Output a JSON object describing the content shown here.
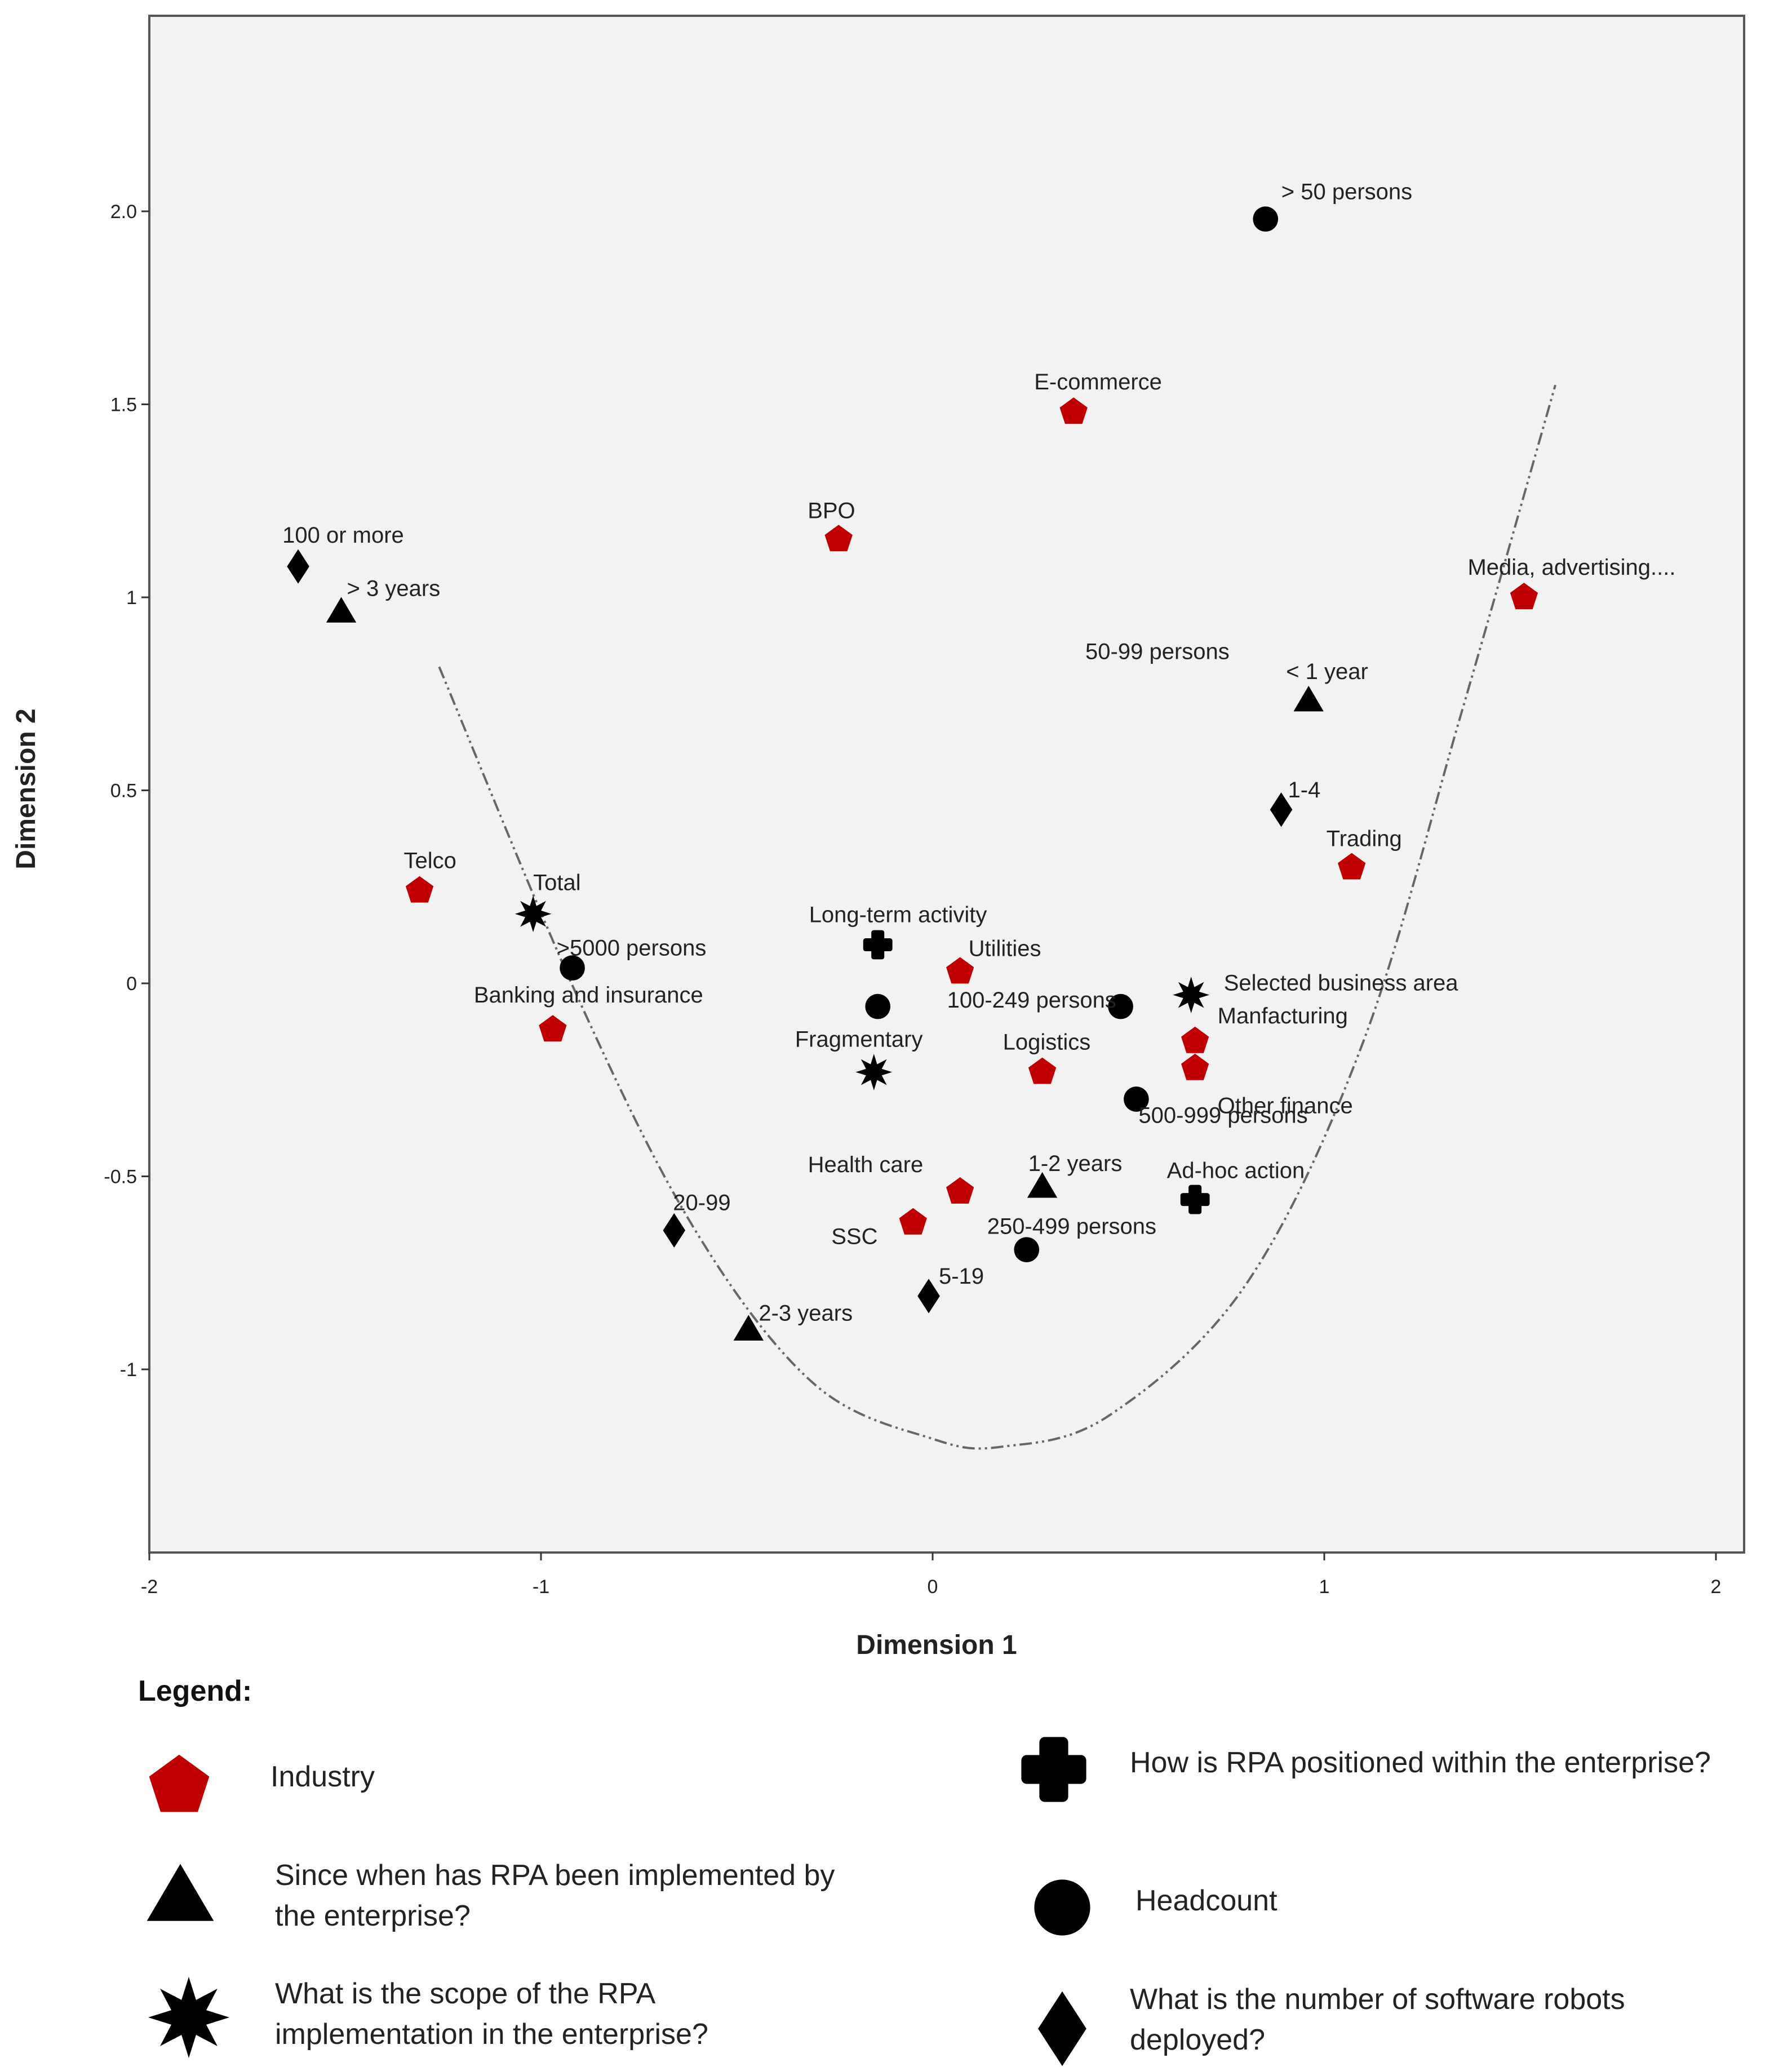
{
  "chart_data": {
    "type": "scatter",
    "title": "",
    "xlabel": "Dimension 1",
    "ylabel": "Dimension 2",
    "xlim": [
      -2,
      2
    ],
    "ylim": [
      -1.45,
      2.5
    ],
    "x_ticks": [
      -2,
      -1,
      0,
      1,
      2
    ],
    "x_tick_labels": [
      "-2",
      "-1",
      "0",
      "1",
      "2"
    ],
    "y_ticks": [
      -1,
      -0.5,
      0,
      0.5,
      1,
      1.5,
      2.0
    ],
    "y_tick_labels": [
      "-1",
      "-0.5",
      "0",
      "0.5",
      "1",
      "1.5",
      "2.0"
    ],
    "grid": false,
    "colors": {
      "industry": "#c00000",
      "other": "#000000",
      "background": "#f2f2f2"
    },
    "series": [
      {
        "name": "Industry",
        "marker": "pentagon",
        "color": "#c00000",
        "points": [
          {
            "x": 0.36,
            "y": 1.48,
            "label": "E-commerce"
          },
          {
            "x": -0.24,
            "y": 1.15,
            "label": "BPO"
          },
          {
            "x": 1.51,
            "y": 1.0,
            "label": "Media, advertising...."
          },
          {
            "x": 1.07,
            "y": 0.3,
            "label": "Trading"
          },
          {
            "x": -1.31,
            "y": 0.24,
            "label": "Telco"
          },
          {
            "x": 0.07,
            "y": 0.03,
            "label": "Utilities"
          },
          {
            "x": -0.97,
            "y": -0.12,
            "label": "Banking and insurance"
          },
          {
            "x": 0.67,
            "y": -0.15,
            "label": "Manfacturing"
          },
          {
            "x": 0.67,
            "y": -0.22,
            "label": "Other finance"
          },
          {
            "x": 0.28,
            "y": -0.23,
            "label": "Logistics"
          },
          {
            "x": 0.07,
            "y": -0.54,
            "label": "Health care"
          },
          {
            "x": -0.05,
            "y": -0.62,
            "label": "SSC"
          }
        ]
      },
      {
        "name": "Since when has RPA been implemented by the enterprise?",
        "marker": "triangle",
        "color": "#000000",
        "points": [
          {
            "x": -1.51,
            "y": 0.96,
            "label": "> 3 years"
          },
          {
            "x": 0.96,
            "y": 0.73,
            "label": "< 1 year"
          },
          {
            "x": 0.28,
            "y": -0.53,
            "label": "1-2 years"
          },
          {
            "x": -0.47,
            "y": -0.9,
            "label": "2-3 years"
          }
        ]
      },
      {
        "name": "What is the scope of the RPA implementation in the enterprise?",
        "marker": "star",
        "color": "#000000",
        "points": [
          {
            "x": -1.02,
            "y": 0.18,
            "label": "Total"
          },
          {
            "x": 0.66,
            "y": -0.03,
            "label": "Selected business area"
          },
          {
            "x": -0.15,
            "y": -0.23,
            "label": "Fragmentary"
          }
        ]
      },
      {
        "name": "How is RPA positioned within the enterprise?",
        "marker": "cross",
        "color": "#000000",
        "points": [
          {
            "x": -0.14,
            "y": 0.1,
            "label": "Long-term activity"
          },
          {
            "x": 0.67,
            "y": -0.56,
            "label": "Ad-hoc action"
          }
        ]
      },
      {
        "name": "Headcount",
        "marker": "circle",
        "color": "#000000",
        "points": [
          {
            "x": 0.85,
            "y": 1.98,
            "label": "> 50 persons"
          },
          {
            "x": -0.92,
            "y": 0.04,
            "label": ">5000 persons"
          },
          {
            "x": -0.14,
            "y": -0.06,
            "label": ""
          },
          {
            "x": 0.48,
            "y": -0.06,
            "label": "100-249 persons"
          },
          {
            "x": 0.52,
            "y": -0.3,
            "label": "500-999 persons"
          },
          {
            "x": 0.24,
            "y": -0.69,
            "label": "250-499 persons"
          }
        ]
      },
      {
        "name": "What is the number of software robots deployed?",
        "marker": "diamond",
        "color": "#000000",
        "points": [
          {
            "x": -1.62,
            "y": 1.08,
            "label": "100 or more"
          },
          {
            "x": 0.89,
            "y": 0.45,
            "label": "1-4"
          },
          {
            "x": -0.66,
            "y": -0.64,
            "label": "20-99"
          },
          {
            "x": -0.01,
            "y": -0.81,
            "label": "5-19"
          }
        ]
      }
    ],
    "free_labels": [
      {
        "text": "50-99 persons",
        "x": 0.39,
        "y": 0.84
      }
    ],
    "curve": [
      [
        -1.26,
        0.82
      ],
      [
        -0.9,
        -0.05
      ],
      [
        -0.6,
        -0.65
      ],
      [
        -0.3,
        -1.04
      ],
      [
        0.0,
        -1.18
      ],
      [
        0.18,
        -1.2
      ],
      [
        0.45,
        -1.12
      ],
      [
        0.8,
        -0.78
      ],
      [
        1.1,
        -0.15
      ],
      [
        1.35,
        0.7
      ],
      [
        1.59,
        1.55
      ]
    ]
  },
  "legend": {
    "title": "Legend:",
    "items": [
      {
        "marker": "pentagon",
        "lines": [
          "Industry"
        ]
      },
      {
        "marker": "cross",
        "lines": [
          "How is RPA positioned within the enterprise?"
        ]
      },
      {
        "marker": "triangle",
        "lines": [
          "Since when has RPA been implemented by",
          "the enterprise?"
        ]
      },
      {
        "marker": "circle",
        "lines": [
          "Headcount"
        ]
      },
      {
        "marker": "star",
        "lines": [
          "What is the scope of the RPA",
          "implementation in the enterprise?"
        ]
      },
      {
        "marker": "diamond",
        "lines": [
          "What is the number of software robots",
          "deployed?"
        ]
      }
    ]
  }
}
